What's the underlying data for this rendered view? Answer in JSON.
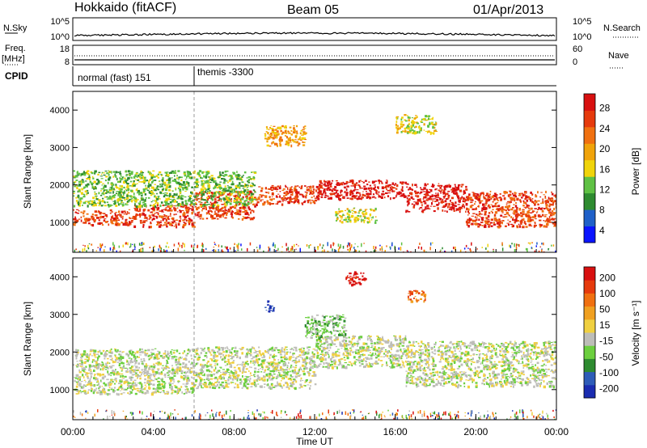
{
  "header": {
    "station": "Hokkaido (fitACF)",
    "beam": "Beam 05",
    "date": "01/Apr/2013"
  },
  "noise_panel": {
    "left_label": "N.Sky",
    "right_label": "N.Search",
    "tick_top": "10^5",
    "tick_bottom": "10^0"
  },
  "freq_panel": {
    "left_label_1": "Freq.",
    "left_label_2": "[MHz]",
    "left_tick_top": "18",
    "left_tick_bottom": "8",
    "right_label": "Nave",
    "right_tick_top": "60",
    "right_tick_bottom": "0"
  },
  "cpid_panel": {
    "label": "CPID",
    "modes": [
      {
        "name": "normal (fast) 151",
        "start_hour": 0
      },
      {
        "name": "themis -3300",
        "start_hour": 6
      }
    ]
  },
  "chart_data": [
    {
      "type": "heatmap",
      "name": "power",
      "ylabel": "Slant Range [km]",
      "xlabel": "Time UT",
      "xlim_hours": [
        0,
        24
      ],
      "ylim_km": [
        200,
        4500
      ],
      "yticks": [
        "1000",
        "2000",
        "3000",
        "4000"
      ],
      "colorbar_label": "Power [dB]",
      "colorbar_ticks": [
        "28",
        "24",
        "20",
        "16",
        "12",
        "8",
        "4"
      ],
      "colors": [
        "#0a14ff",
        "#1f60c8",
        "#2e8b30",
        "#5fc144",
        "#f0d40a",
        "#f0a30a",
        "#f07010",
        "#e63a0c",
        "#d81010"
      ],
      "scatter_bands": [
        {
          "t0": 0.0,
          "t1": 3.0,
          "r0": 950,
          "r1": 1350,
          "level": 7
        },
        {
          "t0": 3.0,
          "t1": 6.0,
          "r0": 900,
          "r1": 1500,
          "level": 7
        },
        {
          "t0": 6.0,
          "t1": 9.0,
          "r0": 1100,
          "r1": 1850,
          "level": 7
        },
        {
          "t0": 9.0,
          "t1": 12.0,
          "r0": 1500,
          "r1": 2000,
          "level": 7
        },
        {
          "t0": 12.0,
          "t1": 16.5,
          "r0": 1650,
          "r1": 2150,
          "level": 8
        },
        {
          "t0": 16.5,
          "t1": 19.5,
          "r0": 1300,
          "r1": 2050,
          "level": 8
        },
        {
          "t0": 19.5,
          "t1": 24.0,
          "r0": 900,
          "r1": 1850,
          "level": 7
        },
        {
          "t0": 0.0,
          "t1": 9.0,
          "r0": 1450,
          "r1": 2400,
          "level": 3
        },
        {
          "t0": 9.5,
          "t1": 11.5,
          "r0": 3050,
          "r1": 3600,
          "level": 5
        },
        {
          "t0": 13.0,
          "t1": 15.0,
          "r0": 1000,
          "r1": 1400,
          "level": 4
        },
        {
          "t0": 16.0,
          "t1": 18.0,
          "r0": 3400,
          "r1": 3900,
          "level": 4
        }
      ]
    },
    {
      "type": "heatmap",
      "name": "velocity",
      "ylabel": "Slant Range [km]",
      "xlabel": "Time UT",
      "xlim_hours": [
        0,
        24
      ],
      "ylim_km": [
        200,
        4500
      ],
      "yticks": [
        "1000",
        "2000",
        "3000",
        "4000"
      ],
      "colorbar_label": "Velocity [m s⁻¹]",
      "colorbar_ticks": [
        "200",
        "100",
        "50",
        "15",
        "-15",
        "-50",
        "-100",
        "-200"
      ],
      "colors": [
        "#1a2cb0",
        "#2e5cb8",
        "#2e8b30",
        "#6ccf3f",
        "#bdbdb8",
        "#f0d040",
        "#f0a020",
        "#f07010",
        "#e63a0c",
        "#d81010"
      ],
      "scatter_bands": [
        {
          "t0": 0.0,
          "t1": 6.0,
          "r0": 900,
          "r1": 2100,
          "level": 4
        },
        {
          "t0": 6.0,
          "t1": 12.0,
          "r0": 1050,
          "r1": 2150,
          "level": 4
        },
        {
          "t0": 12.0,
          "t1": 16.5,
          "r0": 1600,
          "r1": 2450,
          "level": 4
        },
        {
          "t0": 16.5,
          "t1": 24.0,
          "r0": 1100,
          "r1": 2300,
          "level": 4
        },
        {
          "t0": 11.5,
          "t1": 13.5,
          "r0": 2400,
          "r1": 3000,
          "level": 3
        },
        {
          "t0": 13.5,
          "t1": 14.5,
          "r0": 3800,
          "r1": 4150,
          "level": 9
        },
        {
          "t0": 16.5,
          "t1": 17.5,
          "r0": 3350,
          "r1": 3650,
          "level": 7
        },
        {
          "t0": 9.5,
          "t1": 10.0,
          "r0": 3100,
          "r1": 3400,
          "level": 0
        }
      ]
    }
  ],
  "xaxis": {
    "ticks": [
      "00:00",
      "04:00",
      "08:00",
      "12:00",
      "16:00",
      "20:00",
      "00:00"
    ],
    "label": "Time UT"
  }
}
